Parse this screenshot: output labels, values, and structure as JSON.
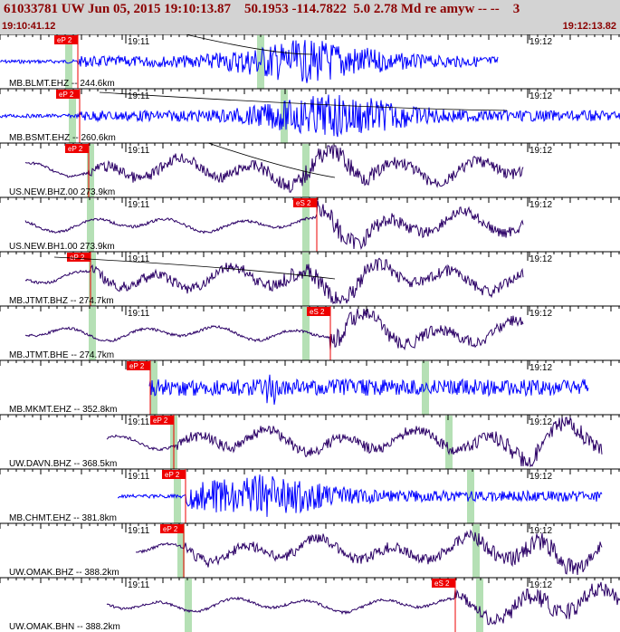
{
  "header": {
    "title": "61033781 UW Jun 05, 2015 19:10:13.87    50.1953 -114.7822  5.0 2.78 Md re amyw -- --    3",
    "time_start": "19:10:41.12",
    "time_end": "19:12:13.82"
  },
  "colors": {
    "header_bg": "#d3d3d3",
    "title_text": "#8b0000",
    "trace_blue": "#0000ff",
    "trace_purple": "#2b0066",
    "pick_box": "#ee0000",
    "window_band": "#b5e0b5"
  },
  "tick_labels": [
    "19:11",
    "19:12"
  ],
  "traces": [
    {
      "label": "MB.BLMT.EHZ -- 244.6km",
      "color": "blue",
      "pick": "eP 2",
      "style": "burst"
    },
    {
      "label": "MB.BSMT.EHZ -- 260.6km",
      "color": "blue",
      "pick": "eP 2",
      "style": "burst"
    },
    {
      "label": "US.NEW.BHZ.00 273.9km",
      "color": "purple",
      "pick": "eP 2",
      "style": "wave"
    },
    {
      "label": "US.NEW.BH1.00 273.9km",
      "color": "purple",
      "pick": "eS 2",
      "style": "wave"
    },
    {
      "label": "MB.JTMT.BHZ -- 274.7km",
      "color": "purple",
      "pick": "eP 2",
      "style": "wave"
    },
    {
      "label": "MB.JTMT.BHE -- 274.7km",
      "color": "purple",
      "pick": "eS 2",
      "style": "wave"
    },
    {
      "label": "MB.MKMT.EHZ -- 352.8km",
      "color": "blue",
      "pick": "eP 2",
      "style": "steady"
    },
    {
      "label": "UW.DAVN.BHZ -- 368.5km",
      "color": "purple",
      "pick": "eP 2",
      "style": "wave"
    },
    {
      "label": "MB.CHMT.EHZ -- 381.8km",
      "color": "blue",
      "pick": "eP 2",
      "style": "burst"
    },
    {
      "label": "UW.OMAK.BHZ -- 388.2km",
      "color": "purple",
      "pick": "eP 2",
      "style": "wave"
    },
    {
      "label": "UW.OMAK.BHN -- 388.2km",
      "color": "purple",
      "pick": "eS 2",
      "style": "wave"
    }
  ]
}
